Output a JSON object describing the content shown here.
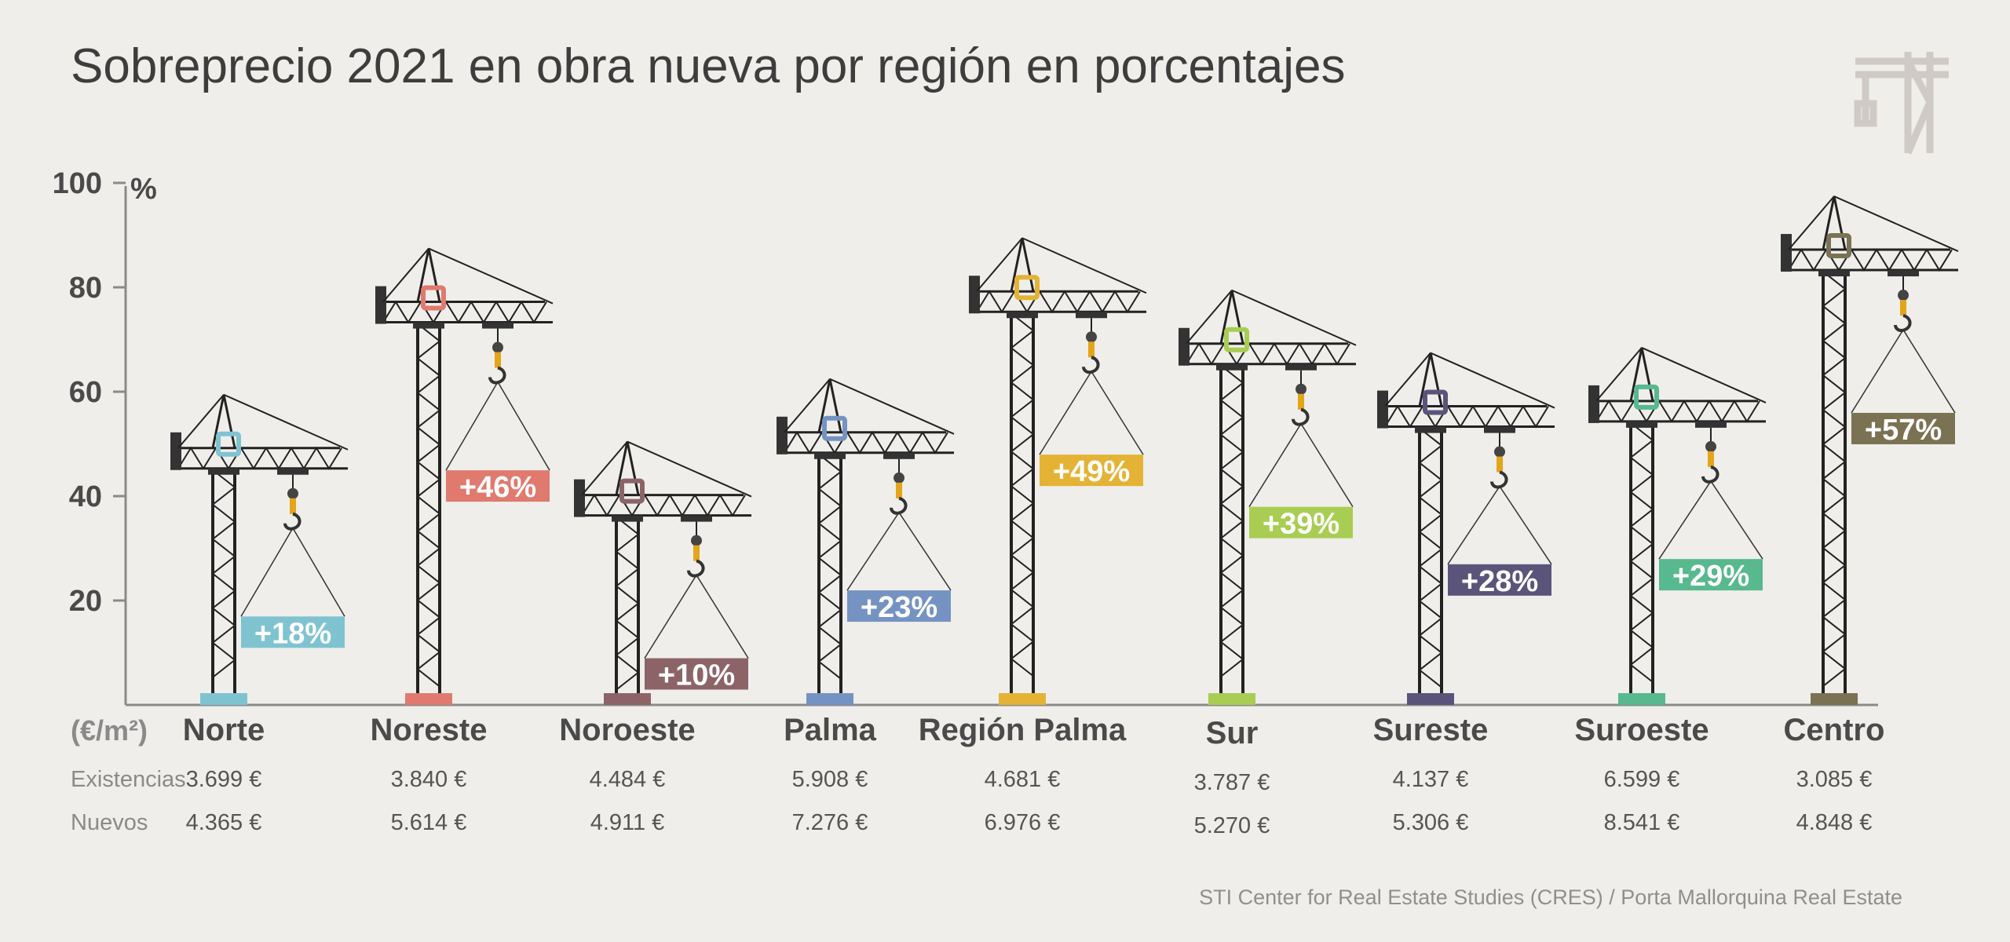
{
  "title": "Sobreprecio 2021 en obra nueva por región en porcentajes",
  "source": "STI Center for Real Estate Studies (CRES) / Porta Mallorquina Real Estate",
  "unit_label": "(€/m²)",
  "y_unit": "%",
  "row_labels": {
    "existencias": "Existencias",
    "nuevos": "Nuevos"
  },
  "icons": {
    "corner": "crane-icon",
    "bar": "crane-icon"
  },
  "chart_data": {
    "type": "bar",
    "ylim": [
      0,
      100
    ],
    "yticks": [
      20,
      40,
      60,
      80,
      100
    ],
    "grid": false,
    "categories": [
      "Norte",
      "Noreste",
      "Noroeste",
      "Palma",
      "Región Palma",
      "Sur",
      "Sureste",
      "Suroeste",
      "Centro"
    ],
    "values": [
      18,
      46,
      10,
      23,
      49,
      39,
      28,
      29,
      57
    ],
    "value_labels": [
      "+18%",
      "+46%",
      "+10%",
      "+23%",
      "+49%",
      "+39%",
      "+28%",
      "+29%",
      "+57%"
    ],
    "crane_height": [
      45,
      73,
      36,
      48,
      75,
      65,
      53,
      54,
      83
    ],
    "colors": [
      "#7fc3d1",
      "#e07a6e",
      "#8c6468",
      "#7593c2",
      "#e4b335",
      "#a8cd52",
      "#5b547a",
      "#58b88e",
      "#7a7253"
    ],
    "existencias": [
      "3.699 €",
      "3.840 €",
      "4.484 €",
      "5.908 €",
      "4.681 €",
      "3.787 €",
      "4.137 €",
      "6.599 €",
      "3.085 €"
    ],
    "nuevos": [
      "4.365 €",
      "5.614 €",
      "4.911 €",
      "7.276 €",
      "6.976 €",
      "5.270 €",
      "5.306 €",
      "8.541 €",
      "4.848 €"
    ]
  }
}
